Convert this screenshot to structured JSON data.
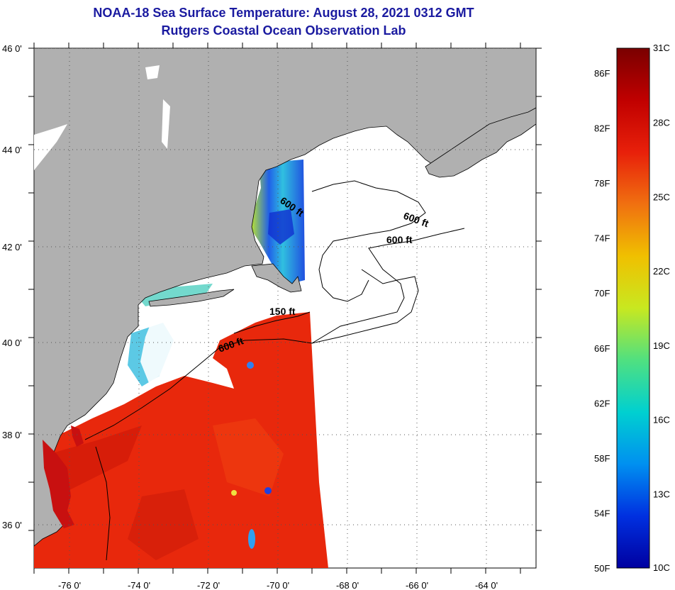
{
  "title": {
    "line1": "NOAA-18 Sea Surface Temperature:  August 28, 2021 0312 GMT",
    "line2": "Rutgers Coastal Ocean Observation Lab"
  },
  "axes": {
    "lon_labels": [
      "-76 0'",
      "-74 0'",
      "-72 0'",
      "-70 0'",
      "-68 0'",
      "-66 0'",
      "-64 0'"
    ],
    "lat_labels": [
      "46 0'",
      "44 0'",
      "42 0'",
      "40 0'",
      "38 0'",
      "36 0'"
    ]
  },
  "contours": {
    "c600a": "600 ft",
    "c600b": "600 ft",
    "c600c": "600 ft",
    "c600d": "600 ft",
    "c150": "150 ft"
  },
  "colorbar": {
    "celsius": [
      "31C",
      "28C",
      "25C",
      "22C",
      "19C",
      "16C",
      "13C",
      "10C"
    ],
    "fahrenheit": [
      "86F",
      "82F",
      "78F",
      "74F",
      "70F",
      "66F",
      "62F",
      "58F",
      "54F",
      "50F"
    ],
    "gradient": [
      "#7a0000",
      "#c00000",
      "#e8200a",
      "#f07010",
      "#f0c000",
      "#c8e820",
      "#50e080",
      "#00d0d0",
      "#0090f0",
      "#0030e0",
      "#0000a0"
    ]
  },
  "colors": {
    "land": "#b0b0b0",
    "warm_water": "#e8280c",
    "no_data": "#ffffff",
    "title_text": "#1a1aa0"
  }
}
